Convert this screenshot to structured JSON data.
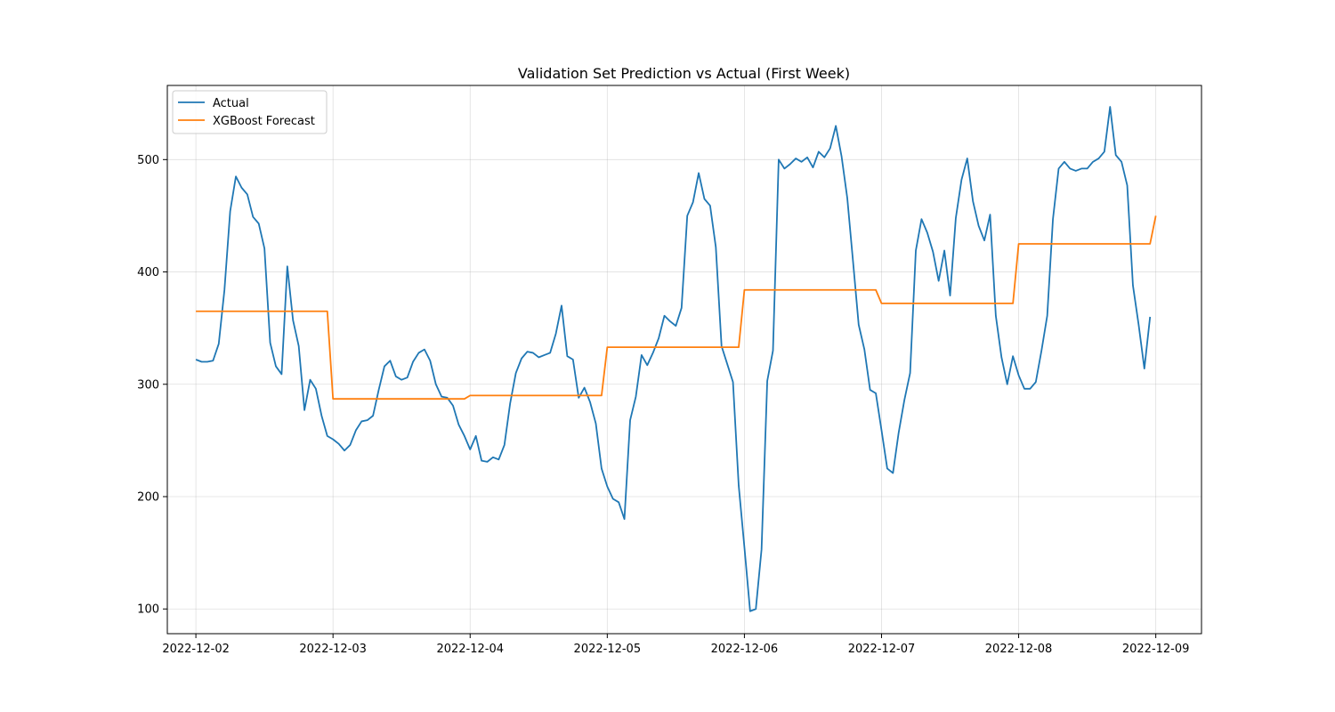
{
  "chart_data": {
    "type": "line",
    "title": "Validation Set Prediction vs Actual (First Week)",
    "xlabel": "",
    "ylabel": "",
    "x_axis": "datetime",
    "xlim": [
      "2022-12-01 19:00",
      "2022-12-09 08:00"
    ],
    "ylim": [
      78,
      566
    ],
    "x_ticks": [
      "2022-12-02",
      "2022-12-03",
      "2022-12-04",
      "2022-12-05",
      "2022-12-06",
      "2022-12-07",
      "2022-12-08",
      "2022-12-09"
    ],
    "y_ticks": [
      100,
      200,
      300,
      400,
      500
    ],
    "grid": true,
    "legend_position": "upper-left",
    "x_step": "1 hour",
    "x_start": "2022-12-02 00:00",
    "series": [
      {
        "name": "Actual",
        "color": "#1f77b4",
        "values": [
          322,
          320,
          320,
          321,
          336,
          384,
          454,
          485,
          475,
          469,
          449,
          443,
          421,
          337,
          316,
          309,
          405,
          357,
          334,
          277,
          304,
          296,
          272,
          254,
          251,
          247,
          241,
          246,
          259,
          267,
          268,
          272,
          295,
          316,
          321,
          307,
          304,
          306,
          320,
          328,
          331,
          321,
          300,
          289,
          288,
          281,
          264,
          254,
          242,
          254,
          232,
          231,
          235,
          233,
          246,
          283,
          310,
          323,
          329,
          328,
          324,
          326,
          328,
          345,
          370,
          325,
          322,
          288,
          297,
          284,
          265,
          225,
          209,
          198,
          195,
          180,
          268,
          289,
          326,
          317,
          328,
          341,
          361,
          356,
          352,
          368,
          450,
          462,
          488,
          465,
          459,
          422,
          334,
          318,
          302,
          210,
          155,
          98,
          100,
          153,
          303,
          330,
          500,
          492,
          496,
          501,
          498,
          502,
          493,
          507,
          502,
          510,
          530,
          503,
          466,
          410,
          353,
          331,
          295,
          292,
          259,
          225,
          221,
          257,
          286,
          310,
          419,
          447,
          435,
          418,
          392,
          419,
          379,
          448,
          482,
          501,
          463,
          441,
          428,
          451,
          361,
          324,
          300,
          325,
          308,
          296,
          296,
          302,
          330,
          361,
          447,
          492,
          498,
          492,
          490,
          492,
          492,
          498,
          501,
          507,
          547,
          504,
          498,
          477,
          388,
          353,
          314,
          360
        ]
      },
      {
        "name": "XGBoost Forecast",
        "color": "#ff7f0e",
        "values": [
          365,
          365,
          365,
          365,
          365,
          365,
          365,
          365,
          365,
          365,
          365,
          365,
          365,
          365,
          365,
          365,
          365,
          365,
          365,
          365,
          365,
          365,
          365,
          365,
          287,
          287,
          287,
          287,
          287,
          287,
          287,
          287,
          287,
          287,
          287,
          287,
          287,
          287,
          287,
          287,
          287,
          287,
          287,
          287,
          287,
          287,
          287,
          287,
          290,
          290,
          290,
          290,
          290,
          290,
          290,
          290,
          290,
          290,
          290,
          290,
          290,
          290,
          290,
          290,
          290,
          290,
          290,
          290,
          290,
          290,
          290,
          290,
          333,
          333,
          333,
          333,
          333,
          333,
          333,
          333,
          333,
          333,
          333,
          333,
          333,
          333,
          333,
          333,
          333,
          333,
          333,
          333,
          333,
          333,
          333,
          333,
          384,
          384,
          384,
          384,
          384,
          384,
          384,
          384,
          384,
          384,
          384,
          384,
          384,
          384,
          384,
          384,
          384,
          384,
          384,
          384,
          384,
          384,
          384,
          384,
          372,
          372,
          372,
          372,
          372,
          372,
          372,
          372,
          372,
          372,
          372,
          372,
          372,
          372,
          372,
          372,
          372,
          372,
          372,
          372,
          372,
          372,
          372,
          372,
          425,
          425,
          425,
          425,
          425,
          425,
          425,
          425,
          425,
          425,
          425,
          425,
          425,
          425,
          425,
          425,
          425,
          425,
          425,
          425,
          425,
          425,
          425,
          425,
          450
        ]
      }
    ]
  }
}
